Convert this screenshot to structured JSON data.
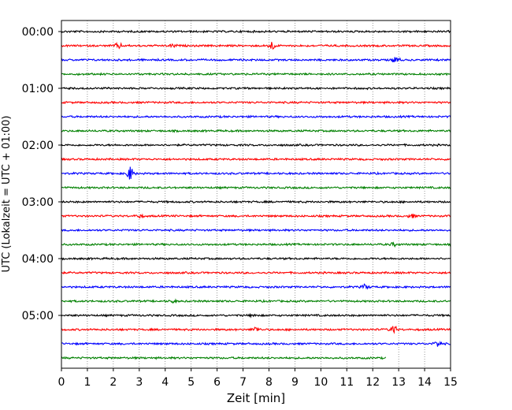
{
  "chart_data": {
    "type": "line",
    "title": "",
    "xlabel": "Zeit  [min]",
    "ylabel": "UTC (Lokalzeit = UTC + 01:00)",
    "xlim": [
      0,
      15
    ],
    "x_ticks": [
      "0",
      "1",
      "2",
      "3",
      "4",
      "5",
      "6",
      "7",
      "8",
      "9",
      "10",
      "11",
      "12",
      "13",
      "14",
      "15"
    ],
    "y_tick_labels": [
      "00:00",
      "01:00",
      "02:00",
      "03:00",
      "04:00",
      "05:00"
    ],
    "grid": "vertical dotted",
    "trace_interval_minutes": 15,
    "trace_colors": [
      "#000000",
      "#ff0000",
      "#0000ff",
      "#008000"
    ],
    "trace_start": "00:00",
    "trace_count": 24,
    "last_trace_end_min": 12.5,
    "events": [
      {
        "trace": 1,
        "x": 2.2,
        "amp": 0.35
      },
      {
        "trace": 1,
        "x": 4.3,
        "amp": 0.2
      },
      {
        "trace": 1,
        "x": 8.1,
        "amp": 0.55
      },
      {
        "trace": 2,
        "x": 12.9,
        "amp": 0.45
      },
      {
        "trace": 10,
        "x": 2.65,
        "amp": 0.9
      },
      {
        "trace": 13,
        "x": 3.0,
        "amp": 0.2
      },
      {
        "trace": 13,
        "x": 13.5,
        "amp": 0.25
      },
      {
        "trace": 15,
        "x": 12.8,
        "amp": 0.2
      },
      {
        "trace": 18,
        "x": 11.7,
        "amp": 0.3
      },
      {
        "trace": 19,
        "x": 4.3,
        "amp": 0.15
      },
      {
        "trace": 20,
        "x": 7.4,
        "amp": 0.15
      },
      {
        "trace": 21,
        "x": 7.5,
        "amp": 0.35
      },
      {
        "trace": 21,
        "x": 12.8,
        "amp": 0.55
      },
      {
        "trace": 22,
        "x": 14.5,
        "amp": 0.4
      }
    ]
  }
}
